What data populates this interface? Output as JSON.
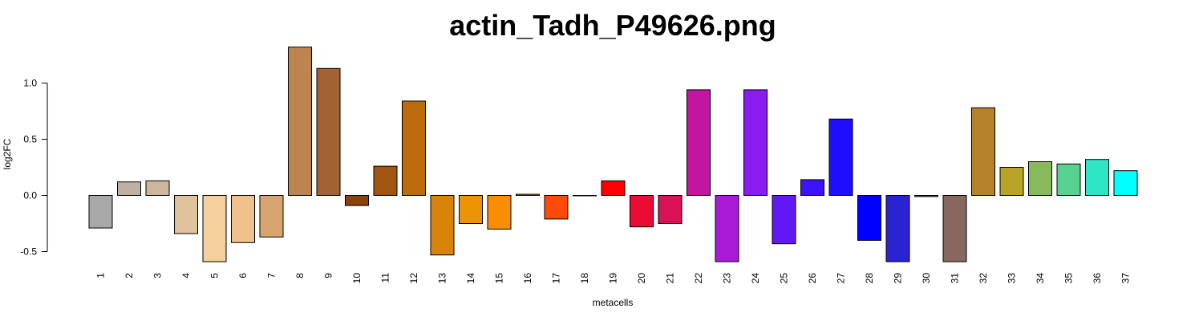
{
  "chart_data": {
    "type": "bar",
    "title": "actin_Tadh_P49626.png",
    "xlabel": "metacells",
    "ylabel": "log2FC",
    "ylim": [
      -0.6,
      1.35
    ],
    "yticks": [
      -0.5,
      0.0,
      0.5,
      1.0
    ],
    "ytick_labels": [
      "-0.5",
      "0.0",
      "0.5",
      "1.0"
    ],
    "grid": false,
    "legend": "none",
    "categories": [
      "1",
      "2",
      "3",
      "4",
      "5",
      "6",
      "7",
      "8",
      "9",
      "10",
      "11",
      "12",
      "13",
      "14",
      "15",
      "16",
      "17",
      "18",
      "19",
      "20",
      "21",
      "22",
      "23",
      "24",
      "25",
      "26",
      "27",
      "28",
      "29",
      "30",
      "31",
      "32",
      "33",
      "34",
      "35",
      "36",
      "37"
    ],
    "values": [
      -0.29,
      0.12,
      0.13,
      -0.34,
      -0.59,
      -0.42,
      -0.37,
      1.32,
      1.13,
      -0.09,
      0.26,
      0.84,
      -0.53,
      -0.25,
      -0.3,
      0.01,
      -0.21,
      0.0,
      0.13,
      -0.28,
      -0.25,
      0.94,
      -0.59,
      0.94,
      -0.43,
      0.14,
      0.68,
      -0.4,
      -0.59,
      -0.01,
      -0.59,
      0.78,
      0.25,
      0.3,
      0.28,
      0.32,
      0.22
    ],
    "colors": [
      "#a8a8a8",
      "#bfb1a1",
      "#cdb69a",
      "#e0c39c",
      "#f5cf9c",
      "#f0c18b",
      "#d9a56e",
      "#bd844f",
      "#a36233",
      "#8b420f",
      "#a25513",
      "#bb6b0c",
      "#d8840b",
      "#eb9505",
      "#fa8d00",
      "#ff8300",
      "#ff4a0a",
      "#ff2211",
      "#ff0000",
      "#ea0c34",
      "#d91156",
      "#c216a0",
      "#a91ad6",
      "#8a1cf0",
      "#6217f5",
      "#3c13fa",
      "#1f0dfd",
      "#0000ff",
      "#2b23d1",
      "#5a5694",
      "#896760",
      "#b6822b",
      "#b8a428",
      "#88b95a",
      "#58d08f",
      "#2ee6c5",
      "#00ffff"
    ]
  }
}
